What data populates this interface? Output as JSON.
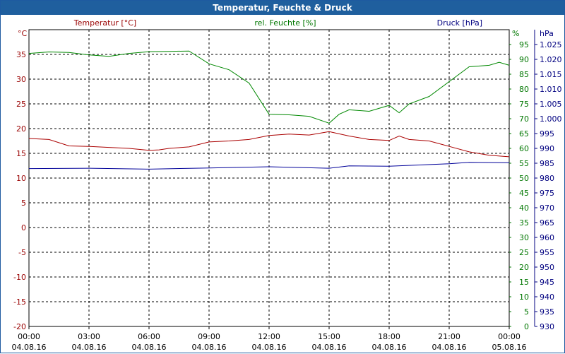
{
  "window": {
    "title": "Temperatur, Feuchte & Druck"
  },
  "chart_data": {
    "type": "line",
    "x_labels": [
      {
        "time": "00:00",
        "date": "04.08.16"
      },
      {
        "time": "03:00",
        "date": "04.08.16"
      },
      {
        "time": "06:00",
        "date": "04.08.16"
      },
      {
        "time": "09:00",
        "date": "04.08.16"
      },
      {
        "time": "12:00",
        "date": "04.08.16"
      },
      {
        "time": "15:00",
        "date": "04.08.16"
      },
      {
        "time": "18:00",
        "date": "04.08.16"
      },
      {
        "time": "21:00",
        "date": "04.08.16"
      },
      {
        "time": "00:00",
        "date": "05.08.16"
      }
    ],
    "xlim_hours": [
      0,
      24
    ],
    "grid": true,
    "axes": {
      "temperature": {
        "label": "Temperatur [°C]",
        "unit": "°C",
        "min": -20,
        "max": 40,
        "step": 5,
        "color": "#990000",
        "ticks": [
          "35",
          "30",
          "25",
          "20",
          "15",
          "10",
          "5",
          "0",
          "-5",
          "-10",
          "-15",
          "-20"
        ]
      },
      "humidity": {
        "label": "rel. Feuchte [%]",
        "unit": "%",
        "min": 0,
        "max": 100,
        "step": 5,
        "color": "#007700",
        "ticks": [
          "95",
          "90",
          "85",
          "80",
          "75",
          "70",
          "65",
          "60",
          "55",
          "50",
          "45",
          "40",
          "35",
          "30",
          "25",
          "20",
          "15",
          "10",
          "5",
          "0"
        ]
      },
      "pressure": {
        "label": "Druck [hPa]",
        "unit": "hPa",
        "min": 930,
        "max": 1030,
        "step": 5,
        "color": "#000080",
        "ticks": [
          "1.025",
          "1.020",
          "1.015",
          "1.010",
          "1.005",
          "1.000",
          "995",
          "990",
          "985",
          "980",
          "975",
          "970",
          "965",
          "960",
          "955",
          "950",
          "945",
          "940",
          "935",
          "930"
        ]
      }
    },
    "series": [
      {
        "name": "Temperatur [°C]",
        "axis": "temperature",
        "color": "#aa0000",
        "points": [
          [
            0,
            18.0
          ],
          [
            1,
            17.8
          ],
          [
            2,
            16.5
          ],
          [
            3,
            16.4
          ],
          [
            4,
            16.2
          ],
          [
            5,
            16.0
          ],
          [
            6,
            15.6
          ],
          [
            6.5,
            15.7
          ],
          [
            7,
            16.0
          ],
          [
            8,
            16.3
          ],
          [
            9,
            17.3
          ],
          [
            10,
            17.5
          ],
          [
            11,
            17.8
          ],
          [
            12,
            18.6
          ],
          [
            13,
            18.9
          ],
          [
            14,
            18.7
          ],
          [
            15,
            19.4
          ],
          [
            16,
            18.5
          ],
          [
            17,
            17.8
          ],
          [
            18,
            17.6
          ],
          [
            18.5,
            18.5
          ],
          [
            19,
            17.8
          ],
          [
            20,
            17.5
          ],
          [
            21,
            16.4
          ],
          [
            22,
            15.3
          ],
          [
            23,
            14.6
          ],
          [
            24,
            14.3
          ]
        ]
      },
      {
        "name": "rel. Feuchte [%]",
        "axis": "humidity",
        "color": "#008800",
        "points": [
          [
            0,
            92.0
          ],
          [
            1,
            92.5
          ],
          [
            2,
            92.3
          ],
          [
            3,
            91.5
          ],
          [
            4,
            91.0
          ],
          [
            5,
            92.0
          ],
          [
            6,
            92.6
          ],
          [
            7,
            92.7
          ],
          [
            8,
            92.8
          ],
          [
            9,
            88.5
          ],
          [
            10,
            86.5
          ],
          [
            11,
            82.0
          ],
          [
            12,
            71.5
          ],
          [
            13,
            71.3
          ],
          [
            14,
            70.8
          ],
          [
            15,
            68.5
          ],
          [
            15.5,
            71.5
          ],
          [
            16,
            73.0
          ],
          [
            17,
            72.5
          ],
          [
            18,
            74.5
          ],
          [
            18.5,
            72.0
          ],
          [
            19,
            75.0
          ],
          [
            20,
            77.5
          ],
          [
            21,
            82.5
          ],
          [
            22,
            87.5
          ],
          [
            23,
            88.0
          ],
          [
            23.5,
            89.0
          ],
          [
            24,
            88.0
          ]
        ]
      },
      {
        "name": "Druck [hPa]",
        "axis": "pressure",
        "color": "#000099",
        "points": [
          [
            0,
            983.2
          ],
          [
            3,
            983.3
          ],
          [
            6,
            983.0
          ],
          [
            9,
            983.4
          ],
          [
            12,
            983.8
          ],
          [
            15,
            983.3
          ],
          [
            16,
            984.1
          ],
          [
            18,
            984.0
          ],
          [
            21,
            984.8
          ],
          [
            22,
            985.3
          ],
          [
            24,
            985.2
          ]
        ]
      }
    ]
  }
}
